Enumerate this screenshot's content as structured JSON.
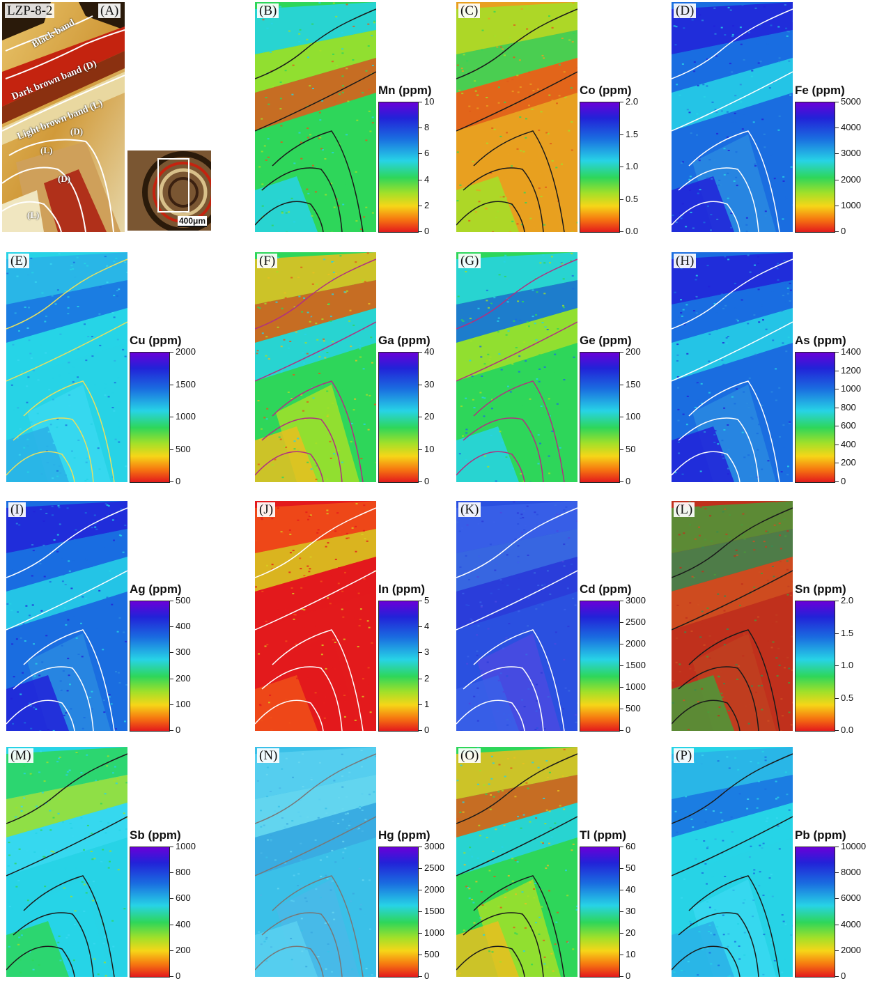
{
  "panel_a": {
    "sample_id": "LZP-8-2",
    "letter": "(A)",
    "band_labels": [
      "Black band",
      "Dark brown band (D)",
      "Light brown band (L)"
    ],
    "zone_labels": [
      "(D)",
      "(L)",
      "(D)",
      "(L)"
    ],
    "scale_bar": "400μm"
  },
  "panels": [
    {
      "letter": "(B)",
      "element": "Mn (ppm)",
      "ticks": [
        "10",
        "8",
        "6",
        "4",
        "2",
        "0"
      ],
      "tone": "noisy-green",
      "outline": "#1a1a1a"
    },
    {
      "letter": "(C)",
      "element": "Co (ppm)",
      "ticks": [
        "2.0",
        "1.5",
        "1.0",
        "0.5",
        "0.0"
      ],
      "tone": "noisy-orange",
      "outline": "#1a1a1a"
    },
    {
      "letter": "(D)",
      "element": "Fe (ppm)",
      "ticks": [
        "5000",
        "4000",
        "3000",
        "2000",
        "1000",
        "0"
      ],
      "tone": "blue",
      "outline": "#ffffff"
    },
    {
      "letter": "(E)",
      "element": "Cu (ppm)",
      "ticks": [
        "2000",
        "1500",
        "1000",
        "500",
        "0"
      ],
      "tone": "cyan",
      "outline": "#e8e060"
    },
    {
      "letter": "(F)",
      "element": "Ga (ppm)",
      "ticks": [
        "40",
        "30",
        "20",
        "10",
        "0"
      ],
      "tone": "mixed",
      "outline": "#b03080"
    },
    {
      "letter": "(G)",
      "element": "Ge (ppm)",
      "ticks": [
        "200",
        "150",
        "100",
        "50",
        "0"
      ],
      "tone": "green-cyan",
      "outline": "#b03080"
    },
    {
      "letter": "(H)",
      "element": "As (ppm)",
      "ticks": [
        "1400",
        "1200",
        "1000",
        "800",
        "600",
        "400",
        "200",
        "0"
      ],
      "tone": "blue",
      "outline": "#ffffff"
    },
    {
      "letter": "(I)",
      "element": "Ag (ppm)",
      "ticks": [
        "500",
        "400",
        "300",
        "200",
        "100",
        "0"
      ],
      "tone": "blue",
      "outline": "#ffffff"
    },
    {
      "letter": "(J)",
      "element": "In (ppm)",
      "ticks": [
        "5",
        "4",
        "3",
        "2",
        "1",
        "0"
      ],
      "tone": "red",
      "outline": "#ffffff"
    },
    {
      "letter": "(K)",
      "element": "Cd (ppm)",
      "ticks": [
        "3000",
        "2500",
        "2000",
        "1500",
        "1000",
        "500",
        "0"
      ],
      "tone": "deep-blue",
      "outline": "#ffffff"
    },
    {
      "letter": "(L)",
      "element": "Sn (ppm)",
      "ticks": [
        "2.0",
        "1.5",
        "1.0",
        "0.5",
        "0.0"
      ],
      "tone": "noisy-red",
      "outline": "#1a1a1a"
    },
    {
      "letter": "(M)",
      "element": "Sb (ppm)",
      "ticks": [
        "1000",
        "800",
        "600",
        "400",
        "200",
        "0"
      ],
      "tone": "cyan-green",
      "outline": "#1a1a1a"
    },
    {
      "letter": "(N)",
      "element": "Hg (ppm)",
      "ticks": [
        "3000",
        "2500",
        "2000",
        "1500",
        "1000",
        "500",
        "0"
      ],
      "tone": "light-cyan",
      "outline": "#777777"
    },
    {
      "letter": "(O)",
      "element": "Tl (ppm)",
      "ticks": [
        "60",
        "50",
        "40",
        "30",
        "20",
        "10",
        "0"
      ],
      "tone": "mixed",
      "outline": "#1a1a1a"
    },
    {
      "letter": "(P)",
      "element": "Pb (ppm)",
      "ticks": [
        "10000",
        "8000",
        "6000",
        "4000",
        "2000",
        "0"
      ],
      "tone": "cyan",
      "outline": "#1a1a1a"
    }
  ],
  "colors": {
    "scale_top": "#6a00d8",
    "scale_bottom": "#e31a1c"
  }
}
